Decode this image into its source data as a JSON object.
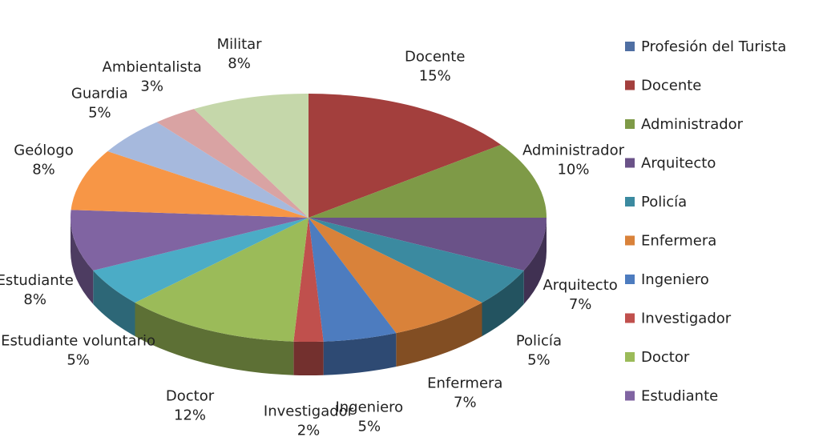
{
  "chart_data": {
    "type": "pie",
    "series_name": "Profesión del Turista",
    "series_color": "#4f6fa3",
    "categories": [
      "Docente",
      "Administrador",
      "Arquitecto",
      "Policía",
      "Enfermera",
      "Ingeniero",
      "Investigador",
      "Doctor",
      "Estudiante voluntario",
      "Estudiante",
      "Geólogo",
      "Guardia",
      "Ambientalista",
      "Militar"
    ],
    "values": [
      15,
      10,
      7,
      5,
      7,
      5,
      2,
      12,
      5,
      8,
      8,
      5,
      3,
      8
    ],
    "value_labels": [
      "15%",
      "10%",
      "7%",
      "5%",
      "7%",
      "5%",
      "2%",
      "12%",
      "5%",
      "8%",
      "8%",
      "5%",
      "3%",
      "8%"
    ],
    "colors": [
      "#a33f3d",
      "#7e9a47",
      "#6a5288",
      "#3b8aa0",
      "#d9823a",
      "#4d7cbf",
      "#c0504d",
      "#9bbb59",
      "#4bacc6",
      "#8064a2",
      "#f79646",
      "#a6b9dd",
      "#d9a3a3",
      "#c5d7aa"
    ],
    "legend_order": [
      0,
      1,
      2,
      3,
      4,
      5,
      6,
      7,
      9,
      8
    ]
  }
}
